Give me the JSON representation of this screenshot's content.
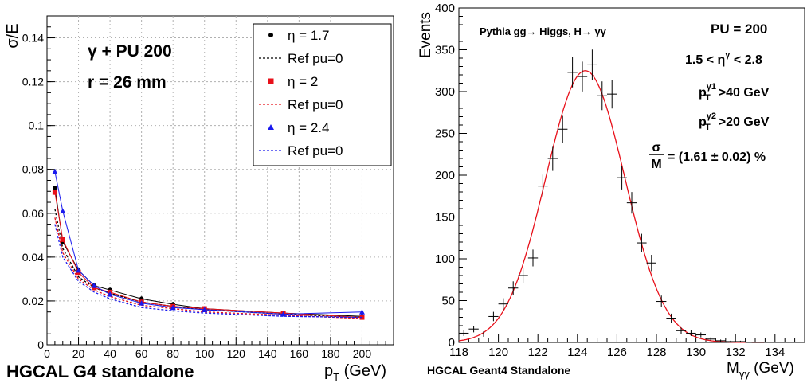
{
  "left_chart": {
    "ylabel": "σ/E",
    "xlabel": "p",
    "xlabel_sub": "T",
    "xlabel_unit": " (GeV)",
    "footer": "HGCAL G4 standalone",
    "annotation_line1": "γ + PU 200",
    "annotation_line2": "r =  26 mm",
    "x_ticks": [
      "0",
      "20",
      "40",
      "60",
      "80",
      "100",
      "120",
      "140",
      "160",
      "180",
      "200"
    ],
    "y_ticks": [
      "0",
      "0.02",
      "0.04",
      "0.06",
      "0.08",
      "0.1",
      "0.12",
      "0.14"
    ],
    "legend": [
      {
        "label": "η = 1.7",
        "kind": "marker",
        "marker": "circle",
        "color": "#000000"
      },
      {
        "label": "Ref pu=0",
        "kind": "dashed",
        "color": "#000000"
      },
      {
        "label": "η = 2",
        "kind": "marker",
        "marker": "square",
        "color": "#e8101a"
      },
      {
        "label": "Ref pu=0",
        "kind": "dashed",
        "color": "#e8101a"
      },
      {
        "label": "η = 2.4",
        "kind": "marker",
        "marker": "triangle",
        "color": "#1a1aee"
      },
      {
        "label": "Ref pu=0",
        "kind": "dashed",
        "color": "#1a1aee"
      }
    ]
  },
  "right_chart": {
    "ylabel": "Events",
    "xlabel": "M",
    "xlabel_sub": "γγ",
    "xlabel_unit": " (GeV)",
    "footer": "HGCAL Geant4 Standalone",
    "process_label": "Pythia gg→ Higgs, H→ γγ",
    "pu_label": "PU = 200",
    "eta_label": "1.5 <  η",
    "eta_sup": "γ",
    "eta_tail": " < 2.8",
    "pt1_label": "p",
    "pt1_sub": "T",
    "pt1_sup": "γ1",
    "pt1_tail": ">40 GeV",
    "pt2_label": "p",
    "pt2_sub": "T",
    "pt2_sup": "γ2",
    "pt2_tail": ">20 GeV",
    "res_num": "σ",
    "res_den": "M",
    "res_value": "= (1.61 ± 0.02) %",
    "x_ticks": [
      "118",
      "120",
      "122",
      "124",
      "126",
      "128",
      "130",
      "132",
      "134"
    ],
    "y_ticks": [
      "0",
      "50",
      "100",
      "150",
      "200",
      "250",
      "300",
      "350",
      "400"
    ]
  },
  "colors": {
    "black": "#000000",
    "red": "#e8101a",
    "blue": "#1a1aee",
    "grid": "#b0b0b0"
  },
  "chart_data": [
    {
      "type": "line",
      "xlabel": "p_T (GeV)",
      "ylabel": "σ/E",
      "xlim": [
        0,
        220
      ],
      "ylim": [
        0,
        0.15
      ],
      "grid": true,
      "legend_position": "top-right",
      "series": [
        {
          "name": "η = 1.7",
          "style": "points",
          "color": "#000000",
          "x": [
            5,
            10,
            20,
            30,
            40,
            60,
            80,
            100,
            150,
            200
          ],
          "y": [
            0.0715,
            0.047,
            0.034,
            0.027,
            0.025,
            0.021,
            0.0185,
            0.0165,
            0.0145,
            0.013
          ]
        },
        {
          "name": "Ref pu=0",
          "style": "dashed",
          "color": "#000000",
          "x": [
            5,
            10,
            20,
            30,
            40,
            60,
            80,
            100,
            150,
            200
          ],
          "y": [
            0.062,
            0.044,
            0.031,
            0.026,
            0.0235,
            0.0195,
            0.0175,
            0.016,
            0.014,
            0.0125
          ]
        },
        {
          "name": "η = 2",
          "style": "points",
          "color": "#e8101a",
          "x": [
            5,
            10,
            20,
            30,
            40,
            60,
            80,
            100,
            150,
            200
          ],
          "y": [
            0.0695,
            0.048,
            0.033,
            0.026,
            0.024,
            0.0195,
            0.0175,
            0.0165,
            0.0145,
            0.0125
          ]
        },
        {
          "name": "Ref pu=0",
          "style": "dashed",
          "color": "#e8101a",
          "x": [
            5,
            10,
            20,
            30,
            40,
            60,
            80,
            100,
            150,
            200
          ],
          "y": [
            0.058,
            0.042,
            0.03,
            0.025,
            0.022,
            0.018,
            0.0165,
            0.015,
            0.0135,
            0.012
          ]
        },
        {
          "name": "η = 2.4",
          "style": "points",
          "color": "#1a1aee",
          "x": [
            5,
            10,
            20,
            30,
            40,
            60,
            80,
            100,
            150,
            200
          ],
          "y": [
            0.079,
            0.061,
            0.034,
            0.027,
            0.023,
            0.019,
            0.017,
            0.016,
            0.014,
            0.015
          ]
        },
        {
          "name": "Ref pu=0",
          "style": "dashed",
          "color": "#1a1aee",
          "x": [
            5,
            10,
            20,
            30,
            40,
            60,
            80,
            100,
            150,
            200
          ],
          "y": [
            0.055,
            0.04,
            0.029,
            0.024,
            0.021,
            0.017,
            0.0155,
            0.0145,
            0.013,
            0.0125
          ]
        }
      ]
    },
    {
      "type": "scatter",
      "xlabel": "M_γγ (GeV)",
      "ylabel": "Events",
      "xlim": [
        118,
        135.5
      ],
      "ylim": [
        0,
        400
      ],
      "grid": false,
      "series": [
        {
          "name": "",
          "style": "crosses",
          "color": "#000000",
          "bin_width": 0.5,
          "x": [
            118.25,
            118.75,
            119.25,
            119.75,
            120.25,
            120.75,
            121.25,
            121.75,
            122.25,
            122.75,
            123.25,
            123.75,
            124.25,
            124.75,
            125.25,
            125.75,
            126.25,
            126.75,
            127.25,
            127.75,
            128.25,
            128.75,
            129.25,
            129.75,
            130.25,
            130.75,
            131.25,
            131.75,
            132.25,
            132.75,
            133.25
          ],
          "y": [
            11,
            16,
            10,
            31,
            46,
            65,
            80,
            101,
            187,
            220,
            255,
            323,
            318,
            332,
            295,
            297,
            197,
            167,
            119,
            95,
            49,
            29,
            14,
            11,
            9,
            4,
            2,
            1,
            1,
            0,
            0
          ]
        },
        {
          "name": "",
          "style": "fit-curve",
          "color": "#e8101a",
          "peak": 325,
          "mean": 124.4,
          "sigma": 2.0
        }
      ]
    }
  ]
}
